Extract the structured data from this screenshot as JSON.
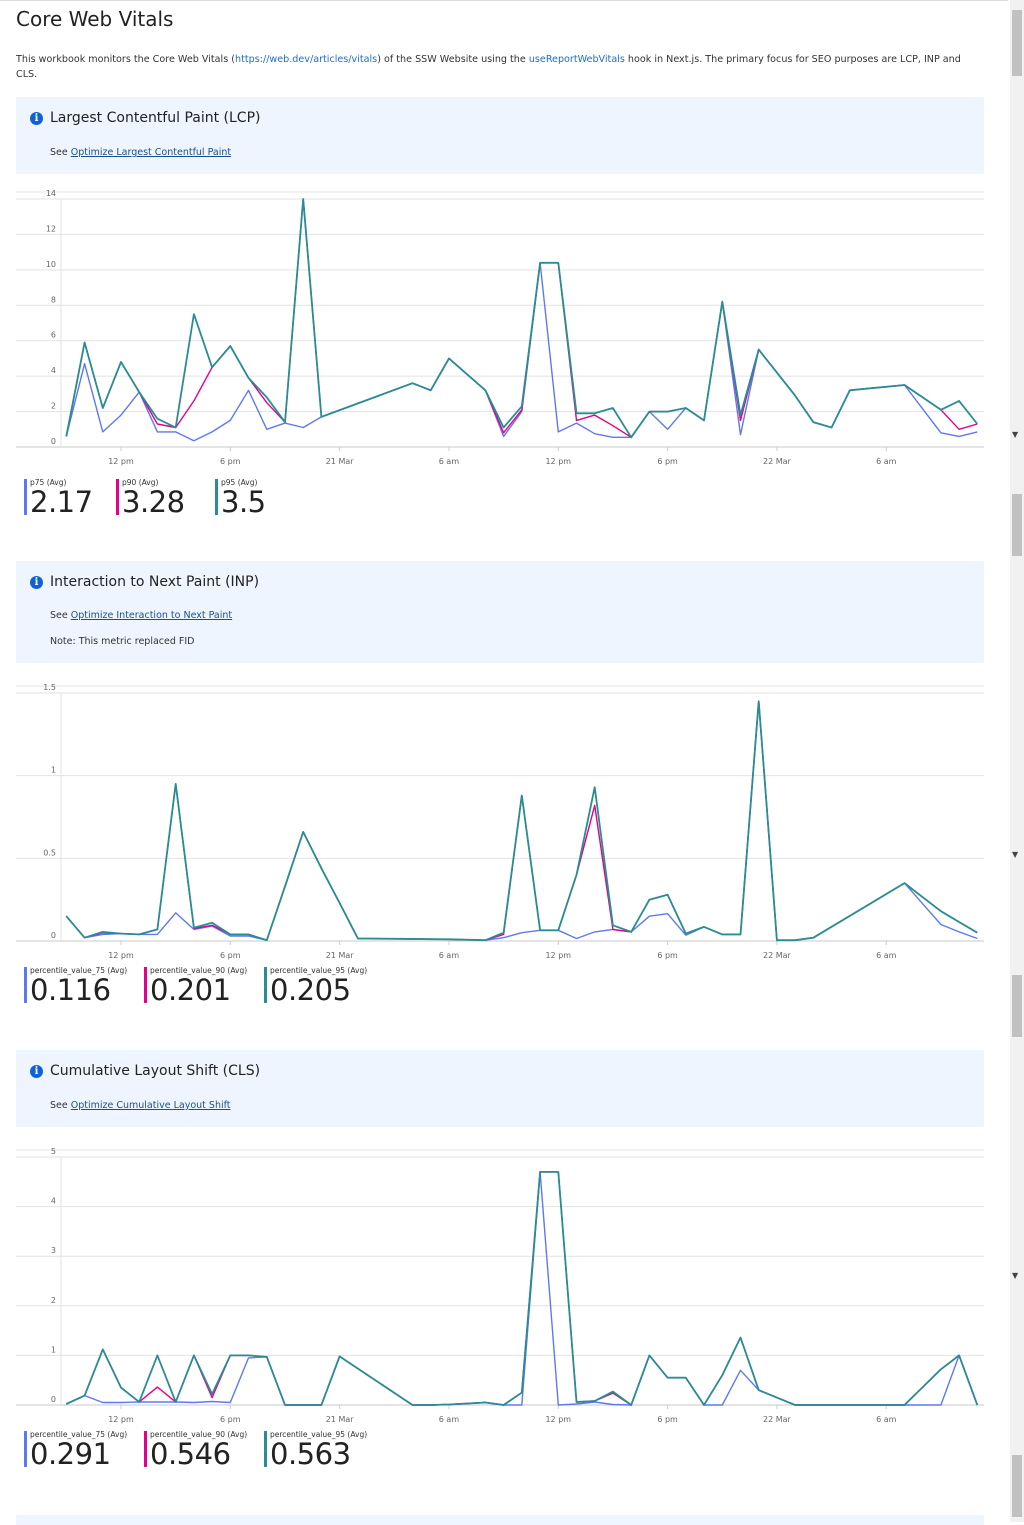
{
  "page": {
    "title": "Core Web Vitals",
    "desc_before": "This workbook monitors the Core Web Vitals (",
    "desc_link1": "https://web.dev/articles/vitals",
    "desc_mid": ") of the SSW Website using the ",
    "desc_link2": "useReportWebVitals",
    "desc_after": " hook in Next.js. The primary focus for SEO purposes are LCP, INP and CLS."
  },
  "colors": {
    "p75": "#5f78f0",
    "p90": "#e3008c",
    "p95": "#2a8d93",
    "info": "#0f62d6",
    "box": "#eef5fe"
  },
  "sections": [
    {
      "heading": "Largest Contentful Paint (LCP)",
      "see": "See ",
      "link": "Optimize Largest Contentful Paint",
      "legend": [
        {
          "label": "p75 (Avg)",
          "value": "2.17"
        },
        {
          "label": "p90 (Avg)",
          "value": "3.28"
        },
        {
          "label": "p95 (Avg)",
          "value": "3.5"
        }
      ]
    },
    {
      "heading": "Interaction to Next Paint (INP)",
      "see": "See ",
      "link": "Optimize Interaction to Next Paint",
      "note": "Note: This metric replaced FID",
      "legend": [
        {
          "label": "percentile_value_75 (Avg)",
          "value": "0.116"
        },
        {
          "label": "percentile_value_90 (Avg)",
          "value": "0.201"
        },
        {
          "label": "percentile_value_95 (Avg)",
          "value": "0.205"
        }
      ]
    },
    {
      "heading": "Cumulative Layout Shift (CLS)",
      "see": "See ",
      "link": "Optimize Cumulative Layout Shift",
      "legend": [
        {
          "label": "percentile_value_75 (Avg)",
          "value": "0.291"
        },
        {
          "label": "percentile_value_90 (Avg)",
          "value": "0.546"
        },
        {
          "label": "percentile_value_95 (Avg)",
          "value": "0.563"
        }
      ]
    }
  ],
  "chart_data": [
    {
      "type": "line",
      "ylim": [
        0,
        14
      ],
      "y_ticks": [
        "0",
        "2",
        "4",
        "6",
        "8",
        "10",
        "12",
        "14"
      ],
      "grid": true,
      "legend": "bottom-left",
      "x_ticks": [
        {
          "label": "12 pm",
          "at": "20 Mar 12:00"
        },
        {
          "label": "6 pm",
          "at": "20 Mar 18:00"
        },
        {
          "label": "21 Mar",
          "at": "21 Mar 00:00"
        },
        {
          "label": "6 am",
          "at": "21 Mar 06:00"
        },
        {
          "label": "12 pm",
          "at": "21 Mar 12:00"
        },
        {
          "label": "6 pm",
          "at": "21 Mar 18:00"
        },
        {
          "label": "22 Mar",
          "at": "22 Mar 00:00"
        },
        {
          "label": "6 am",
          "at": "22 Mar 06:00"
        }
      ],
      "x": [
        "20 Mar 09:00",
        "20 Mar 10:00",
        "20 Mar 11:00",
        "20 Mar 12:00",
        "20 Mar 13:00",
        "20 Mar 14:00",
        "20 Mar 15:00",
        "20 Mar 16:00",
        "20 Mar 17:00",
        "20 Mar 18:00",
        "20 Mar 19:00",
        "20 Mar 20:00",
        "20 Mar 21:00",
        "20 Mar 22:00",
        "20 Mar 23:00",
        "21 Mar 04:00",
        "21 Mar 05:00",
        "21 Mar 06:00",
        "21 Mar 07:00",
        "21 Mar 08:00",
        "21 Mar 09:00",
        "21 Mar 10:00",
        "21 Mar 11:00",
        "21 Mar 12:00",
        "21 Mar 13:00",
        "21 Mar 14:00",
        "21 Mar 15:00",
        "21 Mar 16:00",
        "21 Mar 17:00",
        "21 Mar 18:00",
        "21 Mar 19:00",
        "21 Mar 20:00",
        "21 Mar 21:00",
        "21 Mar 22:00",
        "21 Mar 23:00",
        "22 Mar 00:00",
        "22 Mar 01:00",
        "22 Mar 02:00",
        "22 Mar 03:00",
        "22 Mar 04:00",
        "22 Mar 05:00",
        "22 Mar 06:00",
        "22 Mar 07:00",
        "22 Mar 08:00",
        "22 Mar 09:00",
        "22 Mar 10:00",
        "22 Mar 11:00"
      ],
      "series": [
        {
          "name": "p75 (Avg)",
          "color": "#5f78f0",
          "values": [
            0.6,
            4.7,
            0.85,
            1.8,
            3.1,
            0.85,
            0.85,
            0.35,
            0.85,
            1.5,
            3.2,
            1.0,
            1.35,
            1.1,
            1.7,
            3.6,
            3.2,
            5.0,
            4.1,
            3.2,
            0.6,
            2.0,
            10.4,
            0.85,
            1.35,
            0.75,
            0.55,
            0.55,
            2.0,
            1.0,
            2.2,
            1.5,
            8.2,
            0.7,
            5.5,
            4.2,
            2.9,
            1.4,
            1.1,
            3.2,
            3.3,
            3.4,
            3.5,
            2.15,
            0.8,
            0.6,
            0.85
          ]
        },
        {
          "name": "p90 (Avg)",
          "color": "#e3008c",
          "values": [
            0.6,
            5.9,
            2.2,
            4.8,
            3.1,
            1.3,
            1.1,
            2.6,
            4.5,
            5.7,
            3.9,
            2.5,
            1.4,
            14,
            1.7,
            3.6,
            3.2,
            5.0,
            4.1,
            3.2,
            0.8,
            2.1,
            10.4,
            10.4,
            1.5,
            1.8,
            1.2,
            0.55,
            2.0,
            2.0,
            2.2,
            1.5,
            8.2,
            1.5,
            5.5,
            4.2,
            2.9,
            1.4,
            1.1,
            3.2,
            3.3,
            3.4,
            3.5,
            2.8,
            2.1,
            1.0,
            1.3
          ]
        },
        {
          "name": "p95 (Avg)",
          "color": "#2a8d93",
          "values": [
            0.6,
            5.9,
            2.2,
            4.8,
            3.1,
            1.6,
            1.1,
            7.5,
            4.5,
            5.7,
            3.9,
            2.8,
            1.4,
            14,
            1.7,
            3.6,
            3.2,
            5.0,
            4.1,
            3.2,
            1.1,
            2.3,
            10.4,
            10.4,
            1.9,
            1.9,
            2.2,
            0.55,
            2.0,
            2.0,
            2.2,
            1.5,
            8.2,
            1.8,
            5.5,
            4.2,
            2.9,
            1.4,
            1.1,
            3.2,
            3.3,
            3.4,
            3.5,
            2.8,
            2.1,
            2.6,
            1.3
          ]
        }
      ]
    },
    {
      "type": "line",
      "ylim": [
        0,
        1.5
      ],
      "y_ticks": [
        "0",
        "0.5",
        "1",
        "1.5"
      ],
      "grid": true,
      "legend": "bottom-left",
      "x_ticks": [
        {
          "label": "12 pm",
          "at": "20 Mar 12:00"
        },
        {
          "label": "6 pm",
          "at": "20 Mar 18:00"
        },
        {
          "label": "21 Mar",
          "at": "21 Mar 00:00"
        },
        {
          "label": "6 am",
          "at": "21 Mar 06:00"
        },
        {
          "label": "12 pm",
          "at": "21 Mar 12:00"
        },
        {
          "label": "6 pm",
          "at": "21 Mar 18:00"
        },
        {
          "label": "22 Mar",
          "at": "22 Mar 00:00"
        },
        {
          "label": "6 am",
          "at": "22 Mar 06:00"
        }
      ],
      "x": [
        "20 Mar 09:00",
        "20 Mar 10:00",
        "20 Mar 11:00",
        "20 Mar 12:00",
        "20 Mar 13:00",
        "20 Mar 14:00",
        "20 Mar 15:00",
        "20 Mar 16:00",
        "20 Mar 17:00",
        "20 Mar 18:00",
        "20 Mar 19:00",
        "20 Mar 20:00",
        "20 Mar 21:00",
        "20 Mar 22:00",
        "20 Mar 23:00",
        "21 Mar 00:00",
        "21 Mar 01:00",
        "21 Mar 06:00",
        "21 Mar 08:00",
        "21 Mar 09:00",
        "21 Mar 10:00",
        "21 Mar 11:00",
        "21 Mar 12:00",
        "21 Mar 13:00",
        "21 Mar 14:00",
        "21 Mar 15:00",
        "21 Mar 16:00",
        "21 Mar 17:00",
        "21 Mar 18:00",
        "21 Mar 19:00",
        "21 Mar 20:00",
        "21 Mar 21:00",
        "21 Mar 22:00",
        "21 Mar 23:00",
        "22 Mar 00:00",
        "22 Mar 01:00",
        "22 Mar 02:00",
        "22 Mar 07:00",
        "22 Mar 08:00",
        "22 Mar 09:00",
        "22 Mar 10:00",
        "22 Mar 11:00"
      ],
      "series": [
        {
          "name": "percentile_value_75 (Avg)",
          "color": "#5f78f0",
          "values": [
            0.15,
            0.02,
            0.04,
            0.045,
            0.04,
            0.04,
            0.17,
            0.07,
            0.09,
            0.03,
            0.03,
            0.005,
            0.33,
            0.66,
            0.44,
            0.23,
            0.015,
            0.01,
            0.005,
            0.02,
            0.05,
            0.065,
            0.065,
            0.015,
            0.055,
            0.07,
            0.055,
            0.15,
            0.165,
            0.035,
            0.085,
            0.04,
            0.04,
            1.45,
            0.005,
            0.005,
            0.02,
            0.35,
            0.225,
            0.1,
            0.055,
            0.015
          ]
        },
        {
          "name": "percentile_value_90 (Avg)",
          "color": "#e3008c",
          "values": [
            0.15,
            0.02,
            0.05,
            0.045,
            0.04,
            0.07,
            0.95,
            0.075,
            0.095,
            0.04,
            0.04,
            0.005,
            0.33,
            0.66,
            0.44,
            0.23,
            0.015,
            0.01,
            0.005,
            0.04,
            0.88,
            0.065,
            0.065,
            0.4,
            0.82,
            0.07,
            0.055,
            0.25,
            0.28,
            0.045,
            0.085,
            0.04,
            0.04,
            1.45,
            0.005,
            0.005,
            0.02,
            0.35,
            0.265,
            0.18,
            0.115,
            0.05
          ]
        },
        {
          "name": "percentile_value_95 (Avg)",
          "color": "#2a8d93",
          "values": [
            0.15,
            0.02,
            0.055,
            0.045,
            0.04,
            0.07,
            0.95,
            0.08,
            0.11,
            0.04,
            0.04,
            0.005,
            0.33,
            0.66,
            0.44,
            0.23,
            0.015,
            0.01,
            0.005,
            0.05,
            0.88,
            0.065,
            0.065,
            0.4,
            0.93,
            0.095,
            0.055,
            0.25,
            0.28,
            0.045,
            0.085,
            0.04,
            0.04,
            1.45,
            0.005,
            0.005,
            0.02,
            0.35,
            0.265,
            0.18,
            0.115,
            0.05
          ]
        }
      ]
    },
    {
      "type": "line",
      "ylim": [
        0,
        5
      ],
      "y_ticks": [
        "0",
        "1",
        "2",
        "3",
        "4",
        "5"
      ],
      "grid": true,
      "legend": "bottom-left",
      "x_ticks": [
        {
          "label": "12 pm",
          "at": "20 Mar 12:00"
        },
        {
          "label": "6 pm",
          "at": "20 Mar 18:00"
        },
        {
          "label": "21 Mar",
          "at": "21 Mar 00:00"
        },
        {
          "label": "6 am",
          "at": "21 Mar 06:00"
        },
        {
          "label": "12 pm",
          "at": "21 Mar 12:00"
        },
        {
          "label": "6 pm",
          "at": "21 Mar 18:00"
        },
        {
          "label": "22 Mar",
          "at": "22 Mar 00:00"
        },
        {
          "label": "6 am",
          "at": "22 Mar 06:00"
        }
      ],
      "x": [
        "20 Mar 09:00",
        "20 Mar 10:00",
        "20 Mar 11:00",
        "20 Mar 12:00",
        "20 Mar 13:00",
        "20 Mar 14:00",
        "20 Mar 15:00",
        "20 Mar 16:00",
        "20 Mar 17:00",
        "20 Mar 18:00",
        "20 Mar 19:00",
        "20 Mar 20:00",
        "20 Mar 21:00",
        "20 Mar 22:00",
        "20 Mar 23:00",
        "21 Mar 00:00",
        "21 Mar 04:00",
        "21 Mar 05:00",
        "21 Mar 06:00",
        "21 Mar 07:00",
        "21 Mar 08:00",
        "21 Mar 09:00",
        "21 Mar 10:00",
        "21 Mar 11:00",
        "21 Mar 12:00",
        "21 Mar 13:00",
        "21 Mar 14:00",
        "21 Mar 15:00",
        "21 Mar 16:00",
        "21 Mar 17:00",
        "21 Mar 18:00",
        "21 Mar 19:00",
        "21 Mar 20:00",
        "21 Mar 21:00",
        "21 Mar 22:00",
        "21 Mar 23:00",
        "22 Mar 00:00",
        "22 Mar 01:00",
        "22 Mar 07:00",
        "22 Mar 08:00",
        "22 Mar 09:00",
        "22 Mar 10:00",
        "22 Mar 11:00"
      ],
      "series": [
        {
          "name": "percentile_value_75 (Avg)",
          "color": "#5f78f0",
          "values": [
            0.02,
            0.19,
            0.05,
            0.05,
            0.06,
            0.06,
            0.06,
            0.05,
            0.07,
            0.05,
            0.95,
            0.97,
            0,
            0,
            0,
            0.98,
            0,
            0,
            0.01,
            0.03,
            0.05,
            0,
            0,
            4.7,
            0,
            0.02,
            0.06,
            0.01,
            0,
            1.0,
            0.55,
            0.55,
            0,
            0,
            0.7,
            0.3,
            0.15,
            0,
            0,
            0,
            0,
            1.0,
            0
          ]
        },
        {
          "name": "percentile_value_90 (Avg)",
          "color": "#e3008c",
          "values": [
            0.02,
            0.19,
            1.12,
            0.35,
            0.06,
            0.36,
            0.06,
            1.0,
            0.15,
            1.0,
            1.0,
            0.97,
            0,
            0,
            0,
            0.98,
            0,
            0,
            0.01,
            0.03,
            0.05,
            0,
            0.25,
            4.7,
            4.7,
            0.06,
            0.08,
            0.24,
            0,
            1.0,
            0.55,
            0.55,
            0,
            0.6,
            1.36,
            0.3,
            0.15,
            0,
            0,
            0.36,
            0.72,
            1.0,
            0
          ]
        },
        {
          "name": "percentile_value_95 (Avg)",
          "color": "#2a8d93",
          "values": [
            0.02,
            0.19,
            1.12,
            0.35,
            0.06,
            1.0,
            0.06,
            1.0,
            0.22,
            1.0,
            1.0,
            0.97,
            0,
            0,
            0,
            0.98,
            0,
            0,
            0.01,
            0.03,
            0.05,
            0,
            0.25,
            4.7,
            4.7,
            0.06,
            0.08,
            0.27,
            0,
            1.0,
            0.55,
            0.55,
            0,
            0.6,
            1.36,
            0.3,
            0.15,
            0,
            0,
            0.36,
            0.72,
            1.0,
            0
          ]
        }
      ]
    }
  ]
}
